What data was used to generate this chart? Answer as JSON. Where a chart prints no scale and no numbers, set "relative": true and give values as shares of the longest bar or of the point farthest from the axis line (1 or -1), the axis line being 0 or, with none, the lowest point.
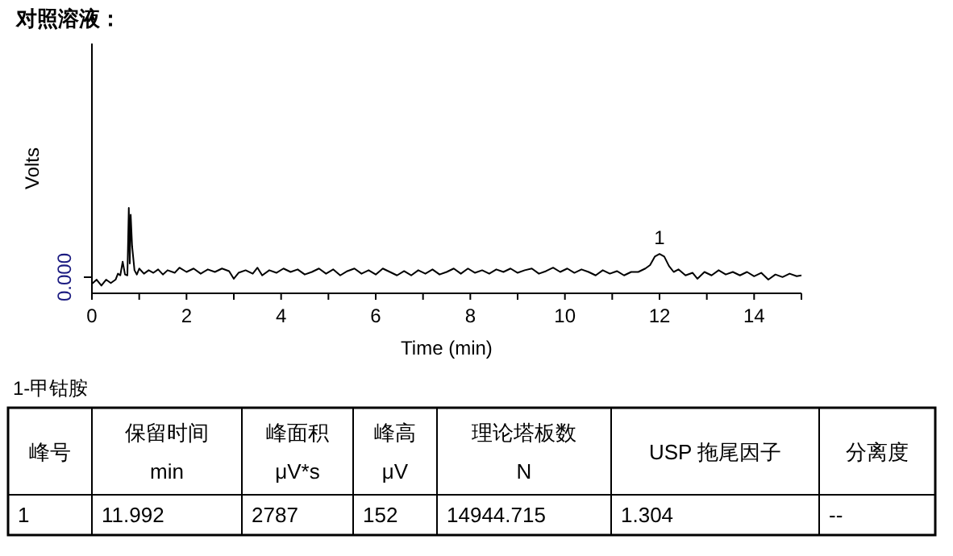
{
  "chart_data": {
    "type": "line",
    "title": "对照溶液：",
    "xlabel": "Time (min)",
    "ylabel": "Volts",
    "relative": true,
    "color": "#000000",
    "xlim": [
      0,
      15
    ],
    "xticks": [
      0,
      {
        "value": 1,
        "label": null
      },
      2,
      {
        "value": 3,
        "label": null
      },
      4,
      {
        "value": 5,
        "label": null
      },
      6,
      {
        "value": 7,
        "label": null
      },
      8,
      {
        "value": 9,
        "label": null
      },
      10,
      {
        "value": 11,
        "label": null
      },
      12,
      {
        "value": 13,
        "label": null
      },
      14,
      {
        "value": 15,
        "label": null
      }
    ],
    "x": [
      0.0,
      0.1,
      0.2,
      0.3,
      0.4,
      0.5,
      0.55,
      0.6,
      0.65,
      0.7,
      0.75,
      0.78,
      0.8,
      0.82,
      0.85,
      0.9,
      0.95,
      1.0,
      1.1,
      1.2,
      1.3,
      1.4,
      1.5,
      1.6,
      1.75,
      1.85,
      2.0,
      2.15,
      2.3,
      2.45,
      2.6,
      2.75,
      2.9,
      3.0,
      3.1,
      3.25,
      3.4,
      3.5,
      3.6,
      3.75,
      3.9,
      4.05,
      4.2,
      4.35,
      4.5,
      4.65,
      4.8,
      4.95,
      5.1,
      5.25,
      5.4,
      5.55,
      5.7,
      5.85,
      6.0,
      6.15,
      6.3,
      6.45,
      6.6,
      6.75,
      6.9,
      7.05,
      7.2,
      7.35,
      7.5,
      7.65,
      7.8,
      7.95,
      8.1,
      8.25,
      8.4,
      8.55,
      8.7,
      8.85,
      9.0,
      9.15,
      9.3,
      9.45,
      9.6,
      9.75,
      9.9,
      10.05,
      10.2,
      10.35,
      10.5,
      10.65,
      10.8,
      10.95,
      11.1,
      11.25,
      11.4,
      11.55,
      11.7,
      11.8,
      11.9,
      12.0,
      12.1,
      12.2,
      12.3,
      12.4,
      12.55,
      12.7,
      12.8,
      12.95,
      13.1,
      13.25,
      13.4,
      13.55,
      13.7,
      13.85,
      14.0,
      14.15,
      14.3,
      14.45,
      14.6,
      14.75,
      14.9,
      15.0
    ],
    "values": [
      0.11,
      0.16,
      0.09,
      0.16,
      0.12,
      0.16,
      0.23,
      0.21,
      0.37,
      0.22,
      0.21,
      1.0,
      0.35,
      0.92,
      0.55,
      0.27,
      0.22,
      0.29,
      0.23,
      0.27,
      0.24,
      0.28,
      0.22,
      0.27,
      0.24,
      0.3,
      0.25,
      0.29,
      0.23,
      0.28,
      0.25,
      0.29,
      0.26,
      0.17,
      0.24,
      0.27,
      0.23,
      0.3,
      0.21,
      0.27,
      0.24,
      0.29,
      0.25,
      0.28,
      0.22,
      0.25,
      0.29,
      0.23,
      0.28,
      0.21,
      0.26,
      0.29,
      0.23,
      0.27,
      0.22,
      0.29,
      0.25,
      0.21,
      0.26,
      0.21,
      0.27,
      0.23,
      0.28,
      0.22,
      0.25,
      0.29,
      0.23,
      0.29,
      0.24,
      0.27,
      0.23,
      0.28,
      0.25,
      0.29,
      0.24,
      0.27,
      0.29,
      0.23,
      0.26,
      0.3,
      0.25,
      0.29,
      0.24,
      0.28,
      0.25,
      0.21,
      0.27,
      0.23,
      0.26,
      0.21,
      0.25,
      0.25,
      0.29,
      0.33,
      0.43,
      0.46,
      0.43,
      0.32,
      0.25,
      0.28,
      0.21,
      0.24,
      0.17,
      0.25,
      0.21,
      0.27,
      0.22,
      0.25,
      0.21,
      0.25,
      0.2,
      0.24,
      0.16,
      0.22,
      0.19,
      0.23,
      0.2,
      0.21
    ],
    "annotations": [
      {
        "text": "1",
        "x": 12,
        "y": 0.46
      },
      "0.000",
      "1-甲钴胺",
      "峰号",
      "保留时间\nmin",
      "峰面积\nμV*s",
      "峰高\nμV",
      "理论塔板数\nN",
      "USP 拖尾因子",
      "分离度",
      "1",
      "11.992",
      "2787",
      "152",
      "14944.715",
      "1.304",
      "--"
    ]
  }
}
